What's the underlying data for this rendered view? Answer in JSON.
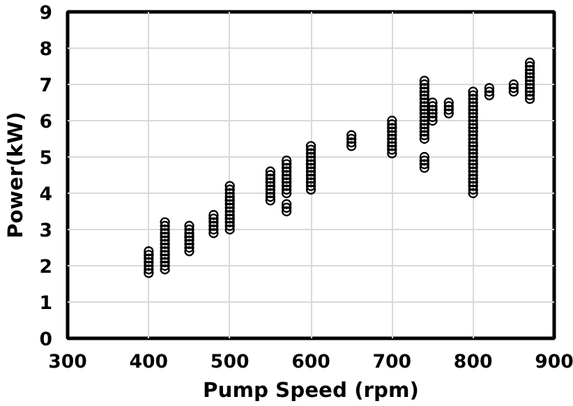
{
  "chart_data": {
    "type": "scatter",
    "xlabel": "Pump Speed (rpm)",
    "ylabel": "Power(kW)",
    "xlim": [
      300,
      900
    ],
    "ylim": [
      0,
      9
    ],
    "xticks": [
      300,
      400,
      500,
      600,
      700,
      800,
      900
    ],
    "yticks": [
      0,
      1,
      2,
      3,
      4,
      5,
      6,
      7,
      8,
      9
    ],
    "grid": true,
    "marker": "circle",
    "series": [
      {
        "color": "#000000",
        "x": [
          400,
          400,
          400,
          400,
          400,
          400,
          400
        ],
        "values": [
          1.8,
          1.9,
          2.0,
          2.1,
          2.2,
          2.3,
          2.4
        ]
      },
      {
        "color": "#000000",
        "x": [
          420,
          420,
          420,
          420,
          420,
          420,
          420,
          420,
          420,
          420,
          420,
          420,
          420,
          420
        ],
        "values": [
          1.9,
          2.0,
          2.1,
          2.2,
          2.3,
          2.4,
          2.5,
          2.6,
          2.7,
          2.8,
          2.9,
          3.0,
          3.1,
          3.2
        ]
      },
      {
        "color": "#000000",
        "x": [
          450,
          450,
          450,
          450,
          450,
          450,
          450,
          450
        ],
        "values": [
          2.4,
          2.5,
          2.6,
          2.7,
          2.8,
          2.9,
          3.0,
          3.1
        ]
      },
      {
        "color": "#000000",
        "x": [
          480,
          480,
          480,
          480,
          480,
          480
        ],
        "values": [
          2.9,
          3.0,
          3.1,
          3.2,
          3.3,
          3.4
        ]
      },
      {
        "color": "#000000",
        "x": [
          500,
          500,
          500,
          500,
          500,
          500,
          500,
          500,
          500,
          500,
          500,
          500,
          500
        ],
        "values": [
          3.0,
          3.1,
          3.2,
          3.3,
          3.4,
          3.5,
          3.6,
          3.7,
          3.8,
          3.9,
          4.0,
          4.1,
          4.2
        ]
      },
      {
        "color": "#000000",
        "x": [
          550,
          550,
          550,
          550,
          550,
          550,
          550,
          550,
          550
        ],
        "values": [
          3.8,
          3.9,
          4.0,
          4.1,
          4.2,
          4.3,
          4.4,
          4.5,
          4.6
        ]
      },
      {
        "color": "#000000",
        "x": [
          570,
          570,
          570,
          570,
          570,
          570,
          570,
          570,
          570,
          570,
          570,
          570,
          570
        ],
        "values": [
          3.5,
          3.6,
          3.7,
          4.0,
          4.1,
          4.2,
          4.3,
          4.4,
          4.5,
          4.6,
          4.7,
          4.8,
          4.9
        ]
      },
      {
        "color": "#000000",
        "x": [
          600,
          600,
          600,
          600,
          600,
          600,
          600,
          600,
          600,
          600,
          600,
          600,
          600
        ],
        "values": [
          4.1,
          4.2,
          4.3,
          4.4,
          4.5,
          4.6,
          4.7,
          4.8,
          4.9,
          5.0,
          5.1,
          5.2,
          5.3
        ]
      },
      {
        "color": "#000000",
        "x": [
          650,
          650,
          650,
          650
        ],
        "values": [
          5.3,
          5.4,
          5.5,
          5.6
        ]
      },
      {
        "color": "#000000",
        "x": [
          700,
          700,
          700,
          700,
          700,
          700,
          700,
          700,
          700,
          700
        ],
        "values": [
          5.1,
          5.2,
          5.3,
          5.4,
          5.5,
          5.6,
          5.7,
          5.8,
          5.9,
          6.0
        ]
      },
      {
        "color": "#000000",
        "x": [
          740,
          740,
          740,
          740,
          740,
          740,
          740,
          740,
          740,
          740,
          740,
          740,
          740,
          740,
          740,
          740,
          740,
          740,
          740,
          740,
          740
        ],
        "values": [
          4.7,
          4.8,
          4.9,
          5.0,
          5.5,
          5.6,
          5.7,
          5.8,
          5.9,
          6.0,
          6.1,
          6.2,
          6.3,
          6.4,
          6.5,
          6.6,
          6.7,
          6.8,
          6.9,
          7.0,
          7.1
        ]
      },
      {
        "color": "#000000",
        "x": [
          750,
          750,
          750,
          750,
          750,
          750
        ],
        "values": [
          6.0,
          6.1,
          6.2,
          6.3,
          6.4,
          6.5
        ]
      },
      {
        "color": "#000000",
        "x": [
          770,
          770,
          770,
          770
        ],
        "values": [
          6.2,
          6.3,
          6.4,
          6.5
        ]
      },
      {
        "color": "#000000",
        "x": [
          800,
          800,
          800,
          800,
          800,
          800,
          800,
          800,
          800,
          800,
          800,
          800,
          800,
          800,
          800,
          800,
          800,
          800,
          800,
          800,
          800,
          800,
          800,
          800,
          800,
          800,
          800,
          800,
          800
        ],
        "values": [
          4.0,
          4.1,
          4.2,
          4.3,
          4.4,
          4.5,
          4.6,
          4.7,
          4.8,
          4.9,
          5.0,
          5.1,
          5.2,
          5.3,
          5.4,
          5.5,
          5.6,
          5.7,
          5.8,
          5.9,
          6.0,
          6.1,
          6.2,
          6.3,
          6.4,
          6.5,
          6.6,
          6.7,
          6.8
        ]
      },
      {
        "color": "#000000",
        "x": [
          820,
          820,
          820
        ],
        "values": [
          6.7,
          6.8,
          6.9
        ]
      },
      {
        "color": "#000000",
        "x": [
          850,
          850,
          850
        ],
        "values": [
          6.8,
          6.9,
          7.0
        ]
      },
      {
        "color": "#000000",
        "x": [
          870,
          870,
          870,
          870,
          870,
          870,
          870,
          870,
          870,
          870,
          870
        ],
        "values": [
          6.6,
          6.7,
          6.8,
          6.9,
          7.0,
          7.1,
          7.2,
          7.3,
          7.4,
          7.5,
          7.6
        ]
      }
    ]
  }
}
